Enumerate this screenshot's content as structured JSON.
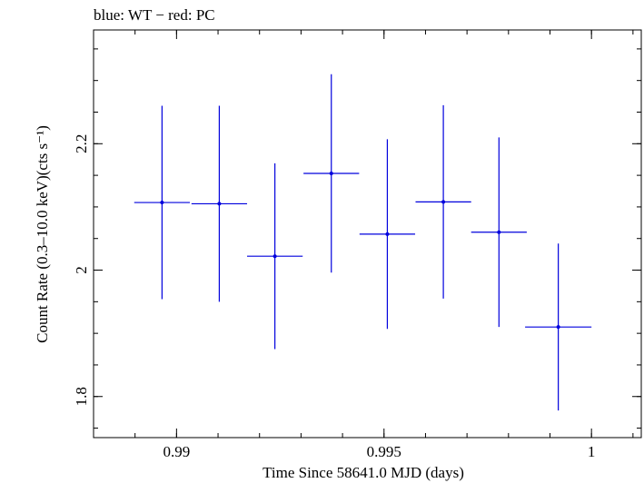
{
  "chart_data": {
    "type": "scatter",
    "title": "blue: WT − red: PC",
    "xlabel": "Time Since 58641.0 MJD (days)",
    "ylabel": "Count Rate (0.3–10.0 keV)(cts s⁻¹)",
    "xlim": [
      0.988,
      1.0012
    ],
    "ylim": [
      1.735,
      2.38
    ],
    "x_ticks": [
      0.99,
      0.995,
      1
    ],
    "x_tick_labels": [
      "0.99",
      "0.995",
      "1"
    ],
    "y_ticks": [
      1.8,
      2.0,
      2.2
    ],
    "y_tick_labels": [
      "1.8",
      "2",
      "2.2"
    ],
    "grid": false,
    "series": [
      {
        "color": "#0000dd",
        "points": [
          {
            "x": 0.98965,
            "xerr": 0.00067,
            "y": 2.107,
            "yerr": 0.153
          },
          {
            "x": 0.99103,
            "xerr": 0.00067,
            "y": 2.105,
            "yerr": 0.155
          },
          {
            "x": 0.99237,
            "xerr": 0.00067,
            "y": 2.022,
            "yerr": 0.147
          },
          {
            "x": 0.99373,
            "xerr": 0.00067,
            "y": 2.153,
            "yerr": 0.157
          },
          {
            "x": 0.99508,
            "xerr": 0.00067,
            "y": 2.057,
            "yerr": 0.15
          },
          {
            "x": 0.99643,
            "xerr": 0.00067,
            "y": 2.108,
            "yerr": 0.153
          },
          {
            "x": 0.99777,
            "xerr": 0.00067,
            "y": 2.06,
            "yerr": 0.15
          },
          {
            "x": 0.9992,
            "xerr": 0.0008,
            "y": 1.91,
            "yerr": 0.132
          }
        ]
      }
    ]
  }
}
